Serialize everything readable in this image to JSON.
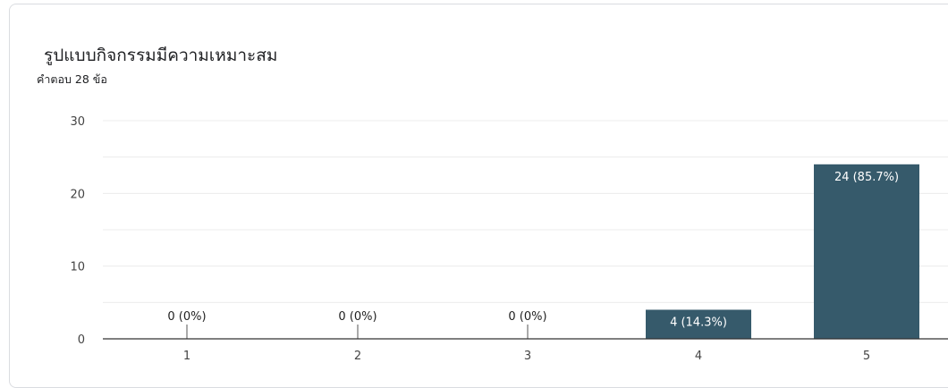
{
  "question": {
    "title": "รูปแบบกิจกรรมมีความเหมาะสม",
    "responses_label": "คำตอบ 28 ข้อ"
  },
  "colors": {
    "bar": "#365a6b",
    "grid": "#ececec",
    "axis": "#333333"
  },
  "chart_data": {
    "type": "bar",
    "categories": [
      "1",
      "2",
      "3",
      "4",
      "5"
    ],
    "values": [
      0,
      0,
      0,
      4,
      24
    ],
    "data_labels": [
      "0 (0%)",
      "0 (0%)",
      "0 (0%)",
      "4 (14.3%)",
      "24 (85.7%)"
    ],
    "ylim": [
      0,
      30
    ],
    "y_ticks": [
      0,
      10,
      20,
      30
    ],
    "gridlines": true,
    "title": "",
    "xlabel": "",
    "ylabel": ""
  }
}
